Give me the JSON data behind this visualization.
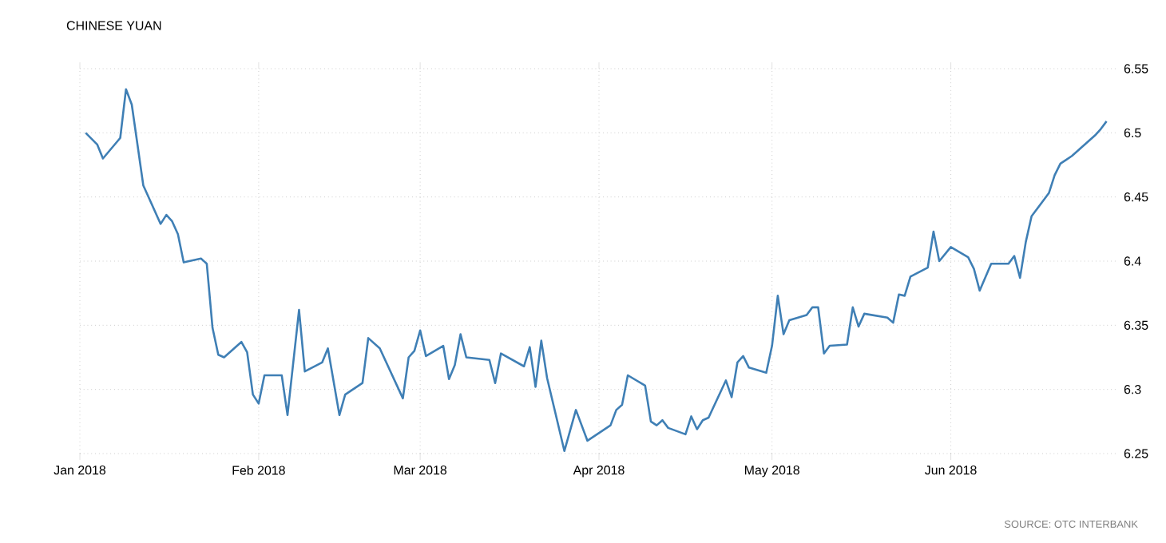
{
  "chart_data": {
    "type": "line",
    "title": "CHINESE YUAN",
    "annotations": [
      "SOURCE: OTC INTERBANK"
    ],
    "x": [
      "2018-01-02",
      "2018-01-04",
      "2018-01-05",
      "2018-01-08",
      "2018-01-09",
      "2018-01-10",
      "2018-01-12",
      "2018-01-15",
      "2018-01-16",
      "2018-01-17",
      "2018-01-18",
      "2018-01-19",
      "2018-01-22",
      "2018-01-23",
      "2018-01-24",
      "2018-01-25",
      "2018-01-26",
      "2018-01-29",
      "2018-01-30",
      "2018-01-31",
      "2018-02-01",
      "2018-02-02",
      "2018-02-05",
      "2018-02-06",
      "2018-02-08",
      "2018-02-09",
      "2018-02-12",
      "2018-02-13",
      "2018-02-15",
      "2018-02-16",
      "2018-02-19",
      "2018-02-20",
      "2018-02-22",
      "2018-02-26",
      "2018-02-27",
      "2018-02-28",
      "2018-03-01",
      "2018-03-02",
      "2018-03-05",
      "2018-03-06",
      "2018-03-07",
      "2018-03-08",
      "2018-03-09",
      "2018-03-13",
      "2018-03-14",
      "2018-03-15",
      "2018-03-19",
      "2018-03-20",
      "2018-03-21",
      "2018-03-22",
      "2018-03-23",
      "2018-03-26",
      "2018-03-28",
      "2018-03-30",
      "2018-04-03",
      "2018-04-04",
      "2018-04-05",
      "2018-04-06",
      "2018-04-09",
      "2018-04-10",
      "2018-04-11",
      "2018-04-12",
      "2018-04-13",
      "2018-04-16",
      "2018-04-17",
      "2018-04-18",
      "2018-04-19",
      "2018-04-20",
      "2018-04-23",
      "2018-04-24",
      "2018-04-25",
      "2018-04-26",
      "2018-04-27",
      "2018-04-30",
      "2018-05-01",
      "2018-05-02",
      "2018-05-03",
      "2018-05-04",
      "2018-05-07",
      "2018-05-08",
      "2018-05-09",
      "2018-05-10",
      "2018-05-11",
      "2018-05-14",
      "2018-05-15",
      "2018-05-16",
      "2018-05-17",
      "2018-05-21",
      "2018-05-22",
      "2018-05-23",
      "2018-05-24",
      "2018-05-25",
      "2018-05-28",
      "2018-05-29",
      "2018-05-30",
      "2018-06-01",
      "2018-06-04",
      "2018-06-05",
      "2018-06-06",
      "2018-06-08",
      "2018-06-11",
      "2018-06-12",
      "2018-06-13",
      "2018-06-14",
      "2018-06-15",
      "2018-06-18",
      "2018-06-19",
      "2018-06-20",
      "2018-06-21",
      "2018-06-22",
      "2018-06-26",
      "2018-06-27",
      "2018-06-28"
    ],
    "series": [
      {
        "color": "#3f7fb5",
        "values": [
          6.5,
          6.491,
          6.48,
          6.496,
          6.534,
          6.522,
          6.459,
          6.429,
          6.436,
          6.431,
          6.421,
          6.399,
          6.402,
          6.398,
          6.348,
          6.327,
          6.325,
          6.337,
          6.329,
          6.296,
          6.289,
          6.311,
          6.311,
          6.28,
          6.362,
          6.314,
          6.321,
          6.332,
          6.28,
          6.296,
          6.305,
          6.34,
          6.332,
          6.293,
          6.325,
          6.33,
          6.346,
          6.326,
          6.334,
          6.308,
          6.319,
          6.343,
          6.325,
          6.323,
          6.305,
          6.328,
          6.318,
          6.333,
          6.302,
          6.338,
          6.309,
          6.252,
          6.284,
          6.26,
          6.272,
          6.284,
          6.288,
          6.311,
          6.303,
          6.275,
          6.272,
          6.276,
          6.27,
          6.265,
          6.279,
          6.269,
          6.276,
          6.278,
          6.307,
          6.294,
          6.321,
          6.326,
          6.317,
          6.313,
          6.334,
          6.373,
          6.343,
          6.354,
          6.358,
          6.364,
          6.364,
          6.328,
          6.334,
          6.335,
          6.364,
          6.349,
          6.359,
          6.356,
          6.352,
          6.374,
          6.373,
          6.388,
          6.395,
          6.423,
          6.4,
          6.411,
          6.403,
          6.394,
          6.377,
          6.398,
          6.398,
          6.404,
          6.387,
          6.415,
          6.435,
          6.453,
          6.467,
          6.476,
          6.479,
          6.482,
          6.498,
          6.503,
          6.509
        ]
      }
    ],
    "xlim": [
      "2018-01-01",
      "2018-06-30"
    ],
    "xticks": [
      {
        "value": "2018-01-01",
        "label": "Jan 2018"
      },
      {
        "value": "2018-02-01",
        "label": "Feb 2018"
      },
      {
        "value": "2018-03-01",
        "label": "Mar 2018"
      },
      {
        "value": "2018-04-01",
        "label": "Apr 2018"
      },
      {
        "value": "2018-05-01",
        "label": "May 2018"
      },
      {
        "value": "2018-06-01",
        "label": "Jun 2018"
      }
    ],
    "ylim": [
      6.25,
      6.55
    ],
    "yticks": [
      6.25,
      6.3,
      6.35,
      6.4,
      6.45,
      6.5,
      6.55
    ],
    "grid": true,
    "marker": "none",
    "line_style": "solid"
  }
}
